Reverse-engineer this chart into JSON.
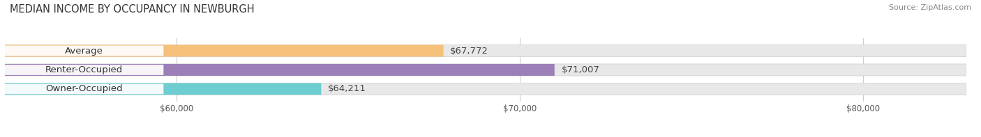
{
  "title": "MEDIAN INCOME BY OCCUPANCY IN NEWBURGH",
  "source": "Source: ZipAtlas.com",
  "categories": [
    "Owner-Occupied",
    "Renter-Occupied",
    "Average"
  ],
  "values": [
    64211,
    71007,
    67772
  ],
  "labels": [
    "$64,211",
    "$71,007",
    "$67,772"
  ],
  "bar_colors": [
    "#6dcdd0",
    "#9b7fb6",
    "#f5c07a"
  ],
  "bar_bg_color": "#e8e8e8",
  "xlim": [
    55000,
    83000
  ],
  "xticks": [
    60000,
    70000,
    80000
  ],
  "xtick_labels": [
    "$60,000",
    "$70,000",
    "$80,000"
  ],
  "title_fontsize": 10.5,
  "label_fontsize": 9.5,
  "tick_fontsize": 8.5,
  "source_fontsize": 8,
  "bar_height": 0.62
}
